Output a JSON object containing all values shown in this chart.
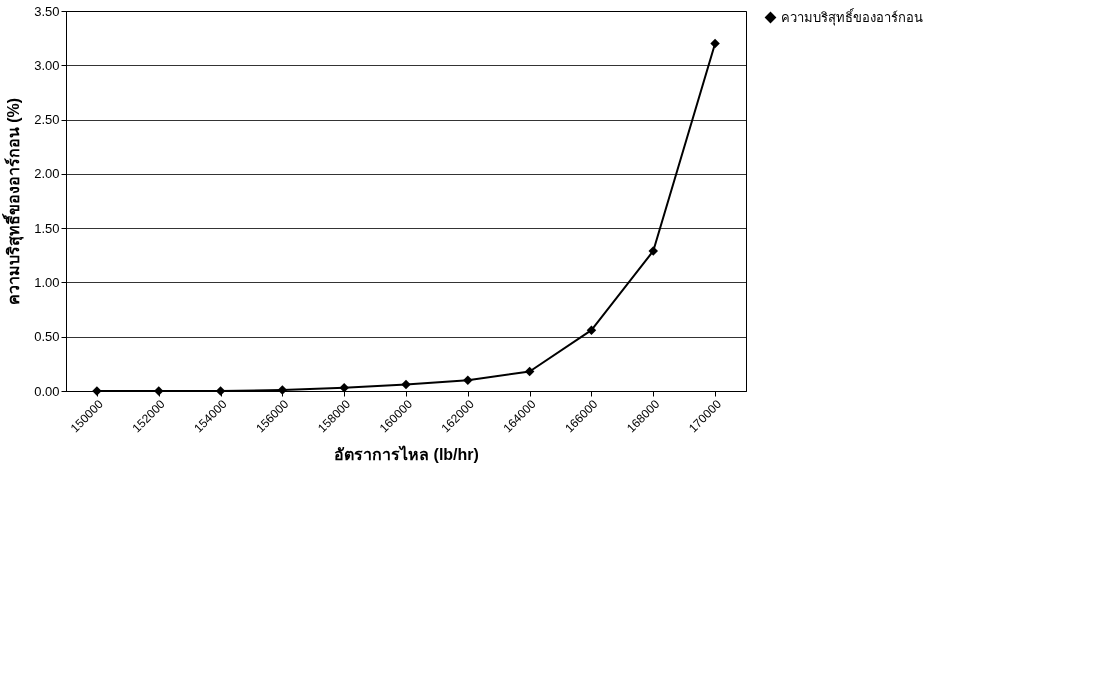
{
  "chart_data": {
    "type": "line",
    "xlabel": "อัตราการไหล (lb/hr)",
    "ylabel": "ความบริสุทธิ์ของอาร์กอน (%)",
    "categories": [
      "150000",
      "152000",
      "154000",
      "156000",
      "158000",
      "160000",
      "162000",
      "164000",
      "166000",
      "168000",
      "170000"
    ],
    "series": [
      {
        "name": "ความบริสุทธิ์ของอาร์กอน",
        "color": "#000000",
        "values": [
          0.0,
          0.0,
          0.0,
          0.01,
          0.03,
          0.06,
          0.1,
          0.18,
          0.56,
          1.29,
          3.2
        ]
      }
    ],
    "ylim": [
      0,
      3.5
    ],
    "yticks": [
      {
        "value": 0,
        "label": "0.00"
      },
      {
        "value": 0.5,
        "label": "0.50"
      },
      {
        "value": 1,
        "label": "1.00"
      },
      {
        "value": 1.5,
        "label": "1.50"
      },
      {
        "value": 2,
        "label": "2.00"
      },
      {
        "value": 2.5,
        "label": "2.50"
      },
      {
        "value": 3,
        "label": "3.00"
      },
      {
        "value": 3.5,
        "label": "3.50"
      }
    ],
    "grid": "y",
    "legend": "right",
    "marker": "diamond",
    "line_style": "solid"
  }
}
